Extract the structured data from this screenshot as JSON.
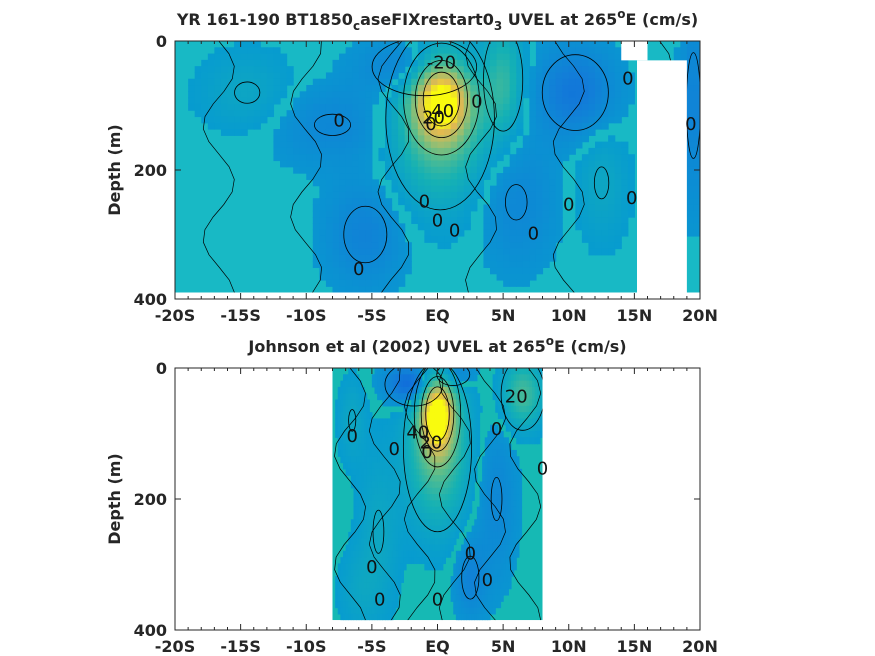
{
  "chart_data": [
    {
      "type": "heatmap",
      "title": "YR 161-190 BT1850_caseFIXrestart0_3 UVEL at 265°E (cm/s)",
      "title_parts": {
        "pre": "YR 161-190 BT1850",
        "sub1": "c",
        "mid": "aseFIXrestart0",
        "sub2": "3",
        "post": " UVEL at 265",
        "sup": "o",
        "tail": "E (cm/s)"
      },
      "xlabel": "",
      "ylabel": "Depth (m)",
      "xlim": [
        -20,
        20
      ],
      "ylim": [
        400,
        0
      ],
      "x_ticks": [
        {
          "value": -20,
          "label": "-20S"
        },
        {
          "value": -15,
          "label": "-15S"
        },
        {
          "value": -10,
          "label": "-10S"
        },
        {
          "value": -5,
          "label": "-5S"
        },
        {
          "value": 0,
          "label": "EQ"
        },
        {
          "value": 5,
          "label": "5N"
        },
        {
          "value": 10,
          "label": "10N"
        },
        {
          "value": 15,
          "label": "15N"
        },
        {
          "value": 20,
          "label": "20N"
        }
      ],
      "y_ticks": [
        {
          "value": 0,
          "label": "0"
        },
        {
          "value": 200,
          "label": "200"
        },
        {
          "value": 400,
          "label": "400"
        }
      ],
      "data_extent": {
        "x": [
          -20,
          20
        ],
        "y": [
          0,
          390
        ]
      },
      "mask_rects": [
        {
          "x": [
            15.2,
            19
          ],
          "y": [
            30,
            400
          ]
        },
        {
          "x": [
            14,
            16
          ],
          "y": [
            0,
            30
          ]
        }
      ],
      "background_color": "#18b9c5",
      "features": [
        {
          "x": 0.3,
          "y": 90,
          "rx": 2.0,
          "ry": 60,
          "value": 60
        },
        {
          "x": 0.2,
          "y": 120,
          "rx": 3.5,
          "ry": 120,
          "value": 30
        },
        {
          "x": -1.0,
          "y": 40,
          "rx": 4.0,
          "ry": 45,
          "value": -20
        },
        {
          "x": -8.0,
          "y": 130,
          "rx": 5.0,
          "ry": 60,
          "value": -8
        },
        {
          "x": -14.5,
          "y": 80,
          "rx": 3.5,
          "ry": 60,
          "value": 8
        },
        {
          "x": 5.0,
          "y": 60,
          "rx": 1.5,
          "ry": 80,
          "value": 20
        },
        {
          "x": 6.0,
          "y": 250,
          "rx": 3.0,
          "ry": 100,
          "value": -8
        },
        {
          "x": 10.5,
          "y": 80,
          "rx": 3.0,
          "ry": 70,
          "value": -15
        },
        {
          "x": 12.5,
          "y": 220,
          "rx": 2.0,
          "ry": 90,
          "value": 8
        },
        {
          "x": 19.5,
          "y": 100,
          "rx": 1.0,
          "ry": 150,
          "value": -10
        },
        {
          "x": -5.5,
          "y": 300,
          "rx": 3.0,
          "ry": 80,
          "value": -10
        }
      ],
      "contour_labels": [
        {
          "x": 0.3,
          "y": 35,
          "text": "-20"
        },
        {
          "x": 0.4,
          "y": 110,
          "text": "40"
        },
        {
          "x": -0.3,
          "y": 120,
          "text": "20"
        },
        {
          "x": -0.5,
          "y": 130,
          "text": "0"
        },
        {
          "x": -7.5,
          "y": 125,
          "text": "0"
        },
        {
          "x": 3.0,
          "y": 95,
          "text": "0"
        },
        {
          "x": 14.5,
          "y": 60,
          "text": "0"
        },
        {
          "x": 19.3,
          "y": 130,
          "text": "0"
        },
        {
          "x": -1.0,
          "y": 250,
          "text": "0"
        },
        {
          "x": 0.0,
          "y": 280,
          "text": "0"
        },
        {
          "x": 1.3,
          "y": 295,
          "text": "0"
        },
        {
          "x": 7.3,
          "y": 300,
          "text": "0"
        },
        {
          "x": 10.0,
          "y": 255,
          "text": "0"
        },
        {
          "x": 14.8,
          "y": 245,
          "text": "0"
        },
        {
          "x": -6.0,
          "y": 355,
          "text": "0"
        }
      ]
    },
    {
      "type": "heatmap",
      "title": "Johnson et al (2002) UVEL at 265°E (cm/s)",
      "title_parts": {
        "pre": "Johnson et al (2002) UVEL at 265",
        "sup": "o",
        "tail": "E (cm/s)"
      },
      "xlabel": "",
      "ylabel": "Depth (m)",
      "xlim": [
        -20,
        20
      ],
      "ylim": [
        400,
        0
      ],
      "x_ticks": [
        {
          "value": -20,
          "label": "-20S"
        },
        {
          "value": -15,
          "label": "-15S"
        },
        {
          "value": -10,
          "label": "-10S"
        },
        {
          "value": -5,
          "label": "-5S"
        },
        {
          "value": 0,
          "label": "EQ"
        },
        {
          "value": 5,
          "label": "5N"
        },
        {
          "value": 10,
          "label": "10N"
        },
        {
          "value": 15,
          "label": "15N"
        },
        {
          "value": 20,
          "label": "20N"
        }
      ],
      "y_ticks": [
        {
          "value": 0,
          "label": "0"
        },
        {
          "value": 200,
          "label": "200"
        },
        {
          "value": 400,
          "label": "400"
        }
      ],
      "data_extent": {
        "x": [
          -8,
          8
        ],
        "y": [
          0,
          385
        ]
      },
      "mask_rects": [],
      "background_color": "#16b9b4",
      "features": [
        {
          "x": 0.0,
          "y": 70,
          "rx": 1.2,
          "ry": 55,
          "value": 65
        },
        {
          "x": 0.0,
          "y": 120,
          "rx": 2.2,
          "ry": 110,
          "value": 30
        },
        {
          "x": -1.8,
          "y": 25,
          "rx": 2.0,
          "ry": 30,
          "value": -25
        },
        {
          "x": 1.2,
          "y": 10,
          "rx": 1.5,
          "ry": 20,
          "value": -15
        },
        {
          "x": 6.5,
          "y": 40,
          "rx": 1.5,
          "ry": 50,
          "value": 25
        },
        {
          "x": -6.5,
          "y": 80,
          "rx": 1.0,
          "ry": 60,
          "value": 8
        },
        {
          "x": 4.5,
          "y": 200,
          "rx": 1.5,
          "ry": 120,
          "value": -8
        },
        {
          "x": -4.5,
          "y": 250,
          "rx": 1.5,
          "ry": 120,
          "value": 8
        },
        {
          "x": 2.5,
          "y": 320,
          "rx": 1.2,
          "ry": 60,
          "value": -10
        },
        {
          "x": -6.0,
          "y": 340,
          "rx": 1.5,
          "ry": 60,
          "value": 6
        }
      ],
      "contour_labels": [
        {
          "x": 6.0,
          "y": 45,
          "text": "20"
        },
        {
          "x": -6.5,
          "y": 105,
          "text": "0"
        },
        {
          "x": -1.5,
          "y": 100,
          "text": "40"
        },
        {
          "x": -0.5,
          "y": 115,
          "text": "20"
        },
        {
          "x": -0.8,
          "y": 130,
          "text": "0"
        },
        {
          "x": -3.3,
          "y": 125,
          "text": "0"
        },
        {
          "x": 4.5,
          "y": 95,
          "text": "0"
        },
        {
          "x": 8.0,
          "y": 155,
          "text": "0"
        },
        {
          "x": -5.0,
          "y": 305,
          "text": "0"
        },
        {
          "x": 2.5,
          "y": 285,
          "text": "0"
        },
        {
          "x": 3.8,
          "y": 325,
          "text": "0"
        },
        {
          "x": -4.4,
          "y": 355,
          "text": "0"
        },
        {
          "x": 0.0,
          "y": 355,
          "text": "0"
        }
      ]
    }
  ]
}
